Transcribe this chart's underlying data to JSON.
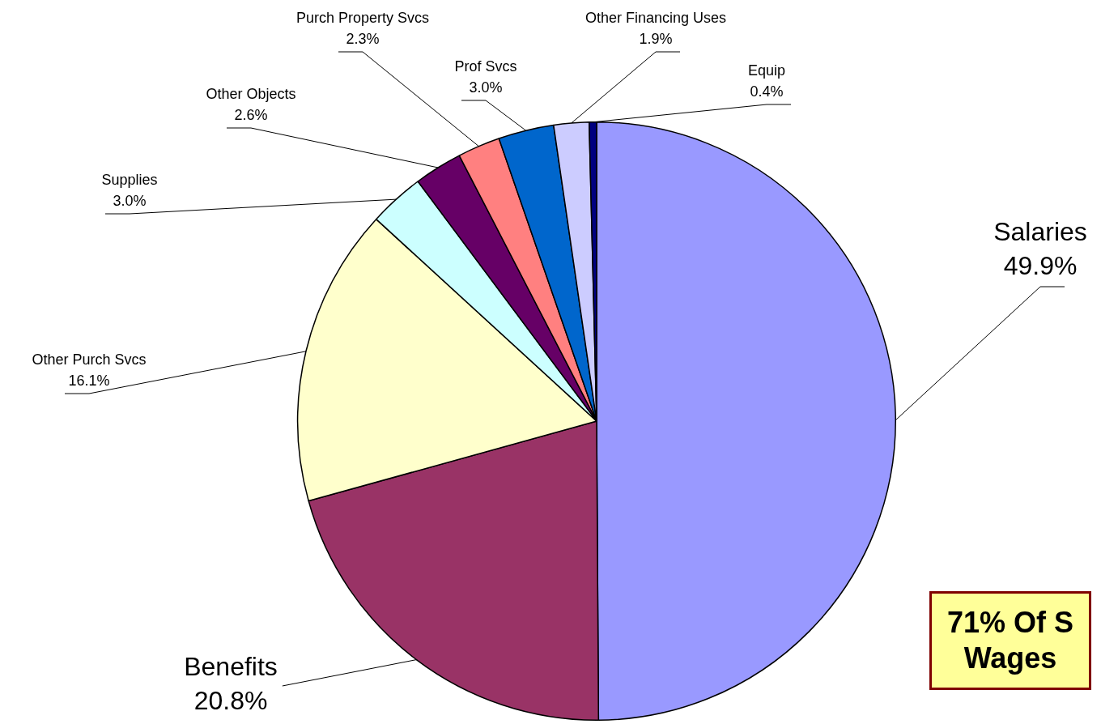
{
  "chart_data": {
    "type": "pie",
    "categories": [
      "Salaries",
      "Benefits",
      "Other Purch Svcs",
      "Supplies",
      "Other Objects",
      "Purch Property Svcs",
      "Prof Svcs",
      "Other Financing Uses",
      "Equip"
    ],
    "values": [
      49.9,
      20.8,
      16.1,
      3.0,
      2.6,
      2.3,
      3.0,
      1.9,
      0.4
    ],
    "value_labels": [
      "49.9%",
      "20.8%",
      "16.1%",
      "3.0%",
      "2.6%",
      "2.3%",
      "3.0%",
      "1.9%",
      "0.4%"
    ],
    "colors": [
      "#9999ff",
      "#993366",
      "#ffffcc",
      "#ccffff",
      "#660066",
      "#ff8080",
      "#0066cc",
      "#ccccff",
      "#000080"
    ],
    "legend": false,
    "annotations": [
      "71% Of S",
      "Wages"
    ]
  }
}
